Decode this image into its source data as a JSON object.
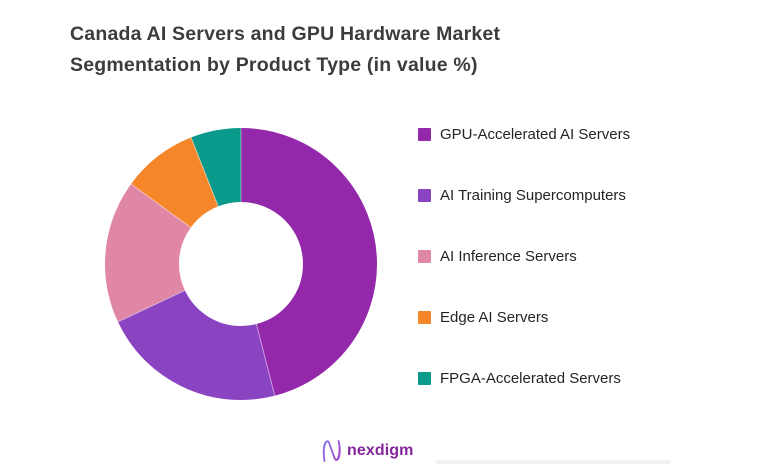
{
  "title": {
    "lines": [
      "Canada AI Servers and GPU Hardware Market",
      "Segmentation by Product Type (in value %)"
    ],
    "color": "#3c3c3c"
  },
  "chart_data": {
    "type": "pie",
    "subtype": "donut",
    "title": "Canada AI Servers and GPU Hardware Market Segmentation by Product Type (in value %)",
    "unit": "value %",
    "categories": [
      "GPU-Accelerated AI Servers",
      "AI Training Supercomputers",
      "AI Inference Servers",
      "Edge AI Servers",
      "FPGA-Accelerated Servers"
    ],
    "values": [
      46,
      22,
      17,
      9,
      6
    ],
    "colors": [
      "#9328ab",
      "#8b44c1",
      "#df87a5",
      "#f6862a",
      "#0a9a8b"
    ],
    "start_angle_deg": 0,
    "direction": "clockwise",
    "inner_radius_ratio": 0.455,
    "legend_position": "right",
    "data_labels": false
  },
  "footer": {
    "logo_text": "nexdigm",
    "logo_color": "#84279b",
    "divider_color": "#f2f2f2"
  }
}
